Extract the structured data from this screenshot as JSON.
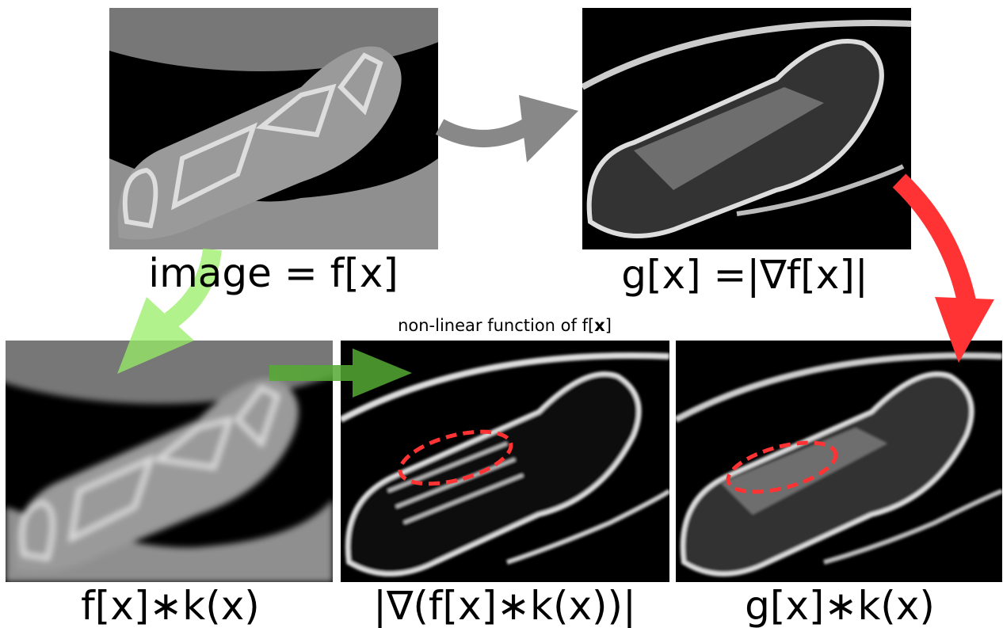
{
  "panels": [
    {
      "label": "image = f[x]"
    },
    {
      "label": "g[x] =|∇f[x]|"
    },
    {
      "label": "f[x]∗k(x)"
    },
    {
      "label": "|∇(f[x]∗k(x))|"
    },
    {
      "label": "g[x]∗k(x)"
    }
  ],
  "caption": {
    "before": "non-linear function of f[",
    "bold": "x",
    "after": "]"
  }
}
